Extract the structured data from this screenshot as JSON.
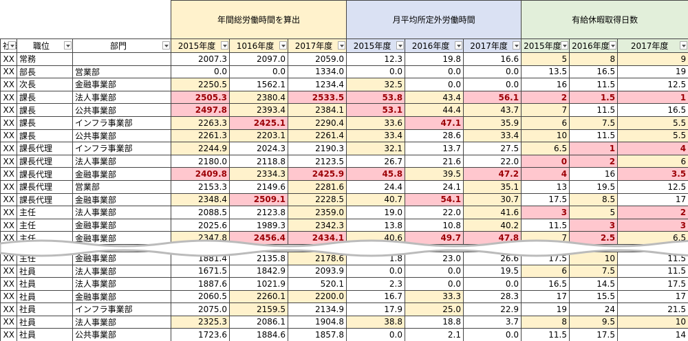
{
  "table": {
    "groups": [
      "年間総労働時間を算出",
      "月平均所定外労働時間",
      "有給休暇取得日数"
    ],
    "group_colors": [
      "#fff2cc",
      "#dae1f3",
      "#e2efda"
    ],
    "columns": [
      "社員",
      "職位",
      "部門",
      "2015年度",
      "1016年度",
      "2017年度",
      "2015年度",
      "2016年度",
      "2017年度",
      "2015年度",
      "2016年度",
      "2017年度"
    ],
    "highlight_colors": {
      "r": {
        "background": "#ffc7ce",
        "color": "#9c0006"
      },
      "y": {
        "background": "#fff2cc",
        "color": "#000000"
      }
    },
    "rows_top": [
      [
        "XX",
        "常務",
        null,
        "2007.3",
        "2097.0",
        "2059.0",
        "12.3",
        "19.8",
        "16.6",
        "5",
        "8",
        "9"
      ],
      [
        "XX",
        "部長",
        "営業部",
        "0.0",
        "0.0",
        "1334.0",
        "0.0",
        "0.0",
        "0.0",
        "13.5",
        "16.5",
        "19"
      ],
      [
        "XX",
        "次長",
        "金融事業部",
        "2250.5",
        "1562.1",
        "1234.4",
        "32.5",
        "0.0",
        "0.0",
        "16",
        "11.5",
        "12.5"
      ],
      [
        "XX",
        "課長",
        "法人事業部",
        "2505.3",
        "2380.4",
        "2533.5",
        "53.8",
        "43.4",
        "56.1",
        "2",
        "1.5",
        "1"
      ],
      [
        "XX",
        "課長",
        "公共事業部",
        "2497.8",
        "2393.4",
        "2384.1",
        "53.1",
        "44.4",
        "43.7",
        "7",
        "11.5",
        "16.5"
      ],
      [
        "XX",
        "課長",
        "インフラ事業部",
        "2263.3",
        "2425.1",
        "2290.4",
        "33.6",
        "47.1",
        "35.9",
        "6",
        "7.5",
        "5.5"
      ],
      [
        "XX",
        "課長",
        "公共事業部",
        "2261.3",
        "2203.1",
        "2261.4",
        "33.4",
        "28.6",
        "33.4",
        "10",
        "11.5",
        "5.5"
      ],
      [
        "XX",
        "課長代理",
        "インフラ事業部",
        "2244.9",
        "2024.3",
        "2190.3",
        "32.1",
        "13.7",
        "27.5",
        "6.5",
        "1",
        "4"
      ],
      [
        "XX",
        "課長代理",
        "法人事業部",
        "2180.0",
        "2118.8",
        "2123.5",
        "26.7",
        "21.6",
        "22.0",
        "0",
        "2",
        "6"
      ],
      [
        "XX",
        "課長代理",
        "金融事業部",
        "2409.8",
        "2334.3",
        "2425.9",
        "45.8",
        "39.5",
        "47.2",
        "4",
        "16",
        "3.5"
      ],
      [
        "XX",
        "課長代理",
        "営業部",
        "2153.3",
        "2149.6",
        "2281.6",
        "24.4",
        "24.1",
        "35.1",
        "13",
        "19.5",
        "12.5"
      ],
      [
        "XX",
        "課長代理",
        "金融事業部",
        "2348.4",
        "2509.1",
        "2228.5",
        "40.7",
        "54.1",
        "30.7",
        "17.5",
        "8.5",
        "17"
      ],
      [
        "XX",
        "主任",
        "法人事業部",
        "2088.5",
        "2123.8",
        "2359.0",
        "19.0",
        "22.0",
        "41.6",
        "3",
        "5",
        "2"
      ],
      [
        "XX",
        "主任",
        "金融事業部",
        "2025.6",
        "1989.3",
        "2342.3",
        "13.8",
        "10.8",
        "40.2",
        "11.5",
        "3",
        "3"
      ],
      [
        "XX",
        "主任",
        "金融事業部",
        "2347.8",
        "2456.4",
        "2434.1",
        "40.6",
        "49.7",
        "47.8",
        "7",
        "2.5",
        "6.5"
      ]
    ],
    "highlights_top": [
      [
        null,
        null,
        null,
        null,
        null,
        null,
        "y",
        "y",
        "y"
      ],
      [
        null,
        null,
        null,
        null,
        null,
        null,
        null,
        null,
        null
      ],
      [
        "y",
        null,
        null,
        "y",
        null,
        null,
        null,
        null,
        null
      ],
      [
        "r",
        "y",
        "r",
        "r",
        "y",
        "r",
        "r",
        "r",
        "r"
      ],
      [
        "r",
        "y",
        "y",
        "r",
        "y",
        "y",
        "y",
        null,
        null
      ],
      [
        "y",
        "r",
        "y",
        "y",
        "r",
        "y",
        "y",
        "y",
        "y"
      ],
      [
        "y",
        "y",
        "y",
        "y",
        null,
        "y",
        "y",
        null,
        "y"
      ],
      [
        "y",
        null,
        null,
        "y",
        null,
        null,
        "y",
        "r",
        "r"
      ],
      [
        null,
        null,
        null,
        null,
        null,
        null,
        "r",
        "r",
        "y"
      ],
      [
        "r",
        "y",
        "r",
        "r",
        "y",
        "r",
        "r",
        null,
        "r"
      ],
      [
        null,
        null,
        "y",
        null,
        null,
        "y",
        null,
        null,
        null
      ],
      [
        "y",
        "r",
        "y",
        "y",
        "r",
        "y",
        null,
        "y",
        null
      ],
      [
        null,
        null,
        "y",
        null,
        null,
        "y",
        "r",
        "y",
        "r"
      ],
      [
        null,
        null,
        "y",
        null,
        null,
        "y",
        null,
        "r",
        "r"
      ],
      [
        "y",
        "r",
        "r",
        "y",
        "r",
        "r",
        "y",
        "r",
        "y"
      ]
    ],
    "rows_bottom": [
      [
        "XX",
        "主任",
        "金融事業部",
        "1881.4",
        "2135.8",
        "2178.6",
        "1.8",
        "23.0",
        "26.6",
        "17.5",
        "10",
        "11.5"
      ],
      [
        "XX",
        "社員",
        "法人事業部",
        "1671.5",
        "1842.9",
        "2093.9",
        "0.0",
        "0.0",
        "19.5",
        "6",
        "7.5",
        "11.5"
      ],
      [
        "XX",
        "社員",
        "法人事業部",
        "1887.6",
        "1021.9",
        "520.1",
        "2.3",
        "0.0",
        "0.0",
        "16.5",
        "14.5",
        "17.5"
      ],
      [
        "XX",
        "社員",
        "金融事業部",
        "2060.5",
        "2260.1",
        "2200.0",
        "16.7",
        "33.3",
        "28.3",
        "17",
        "15.5",
        "17"
      ],
      [
        "XX",
        "社員",
        "インフラ事業部",
        "2075.0",
        "2159.5",
        "2134.9",
        "17.9",
        "25.0",
        "22.9",
        "19",
        "24",
        "21.5"
      ],
      [
        "XX",
        "社員",
        "法人事業部",
        "2325.3",
        "2086.1",
        "1904.8",
        "38.8",
        "18.8",
        "3.7",
        "8",
        "9.5",
        "10"
      ],
      [
        "XX",
        "社員",
        "公共事業部",
        "1723.6",
        "1884.6",
        "1857.8",
        "0.0",
        "2.1",
        "0.0",
        "11.5",
        "17.5",
        "14"
      ]
    ],
    "highlights_bottom": [
      [
        null,
        null,
        "y",
        null,
        null,
        null,
        null,
        "y",
        null
      ],
      [
        null,
        null,
        null,
        null,
        null,
        null,
        "y",
        "y",
        null
      ],
      [
        null,
        null,
        null,
        null,
        null,
        null,
        null,
        null,
        null
      ],
      [
        null,
        "y",
        "y",
        null,
        "y",
        null,
        null,
        null,
        null
      ],
      [
        null,
        "y",
        null,
        null,
        "y",
        null,
        null,
        null,
        null
      ],
      [
        "y",
        null,
        null,
        "y",
        null,
        null,
        "y",
        "y",
        "y"
      ],
      [
        null,
        null,
        null,
        null,
        null,
        null,
        null,
        null,
        null
      ]
    ]
  }
}
